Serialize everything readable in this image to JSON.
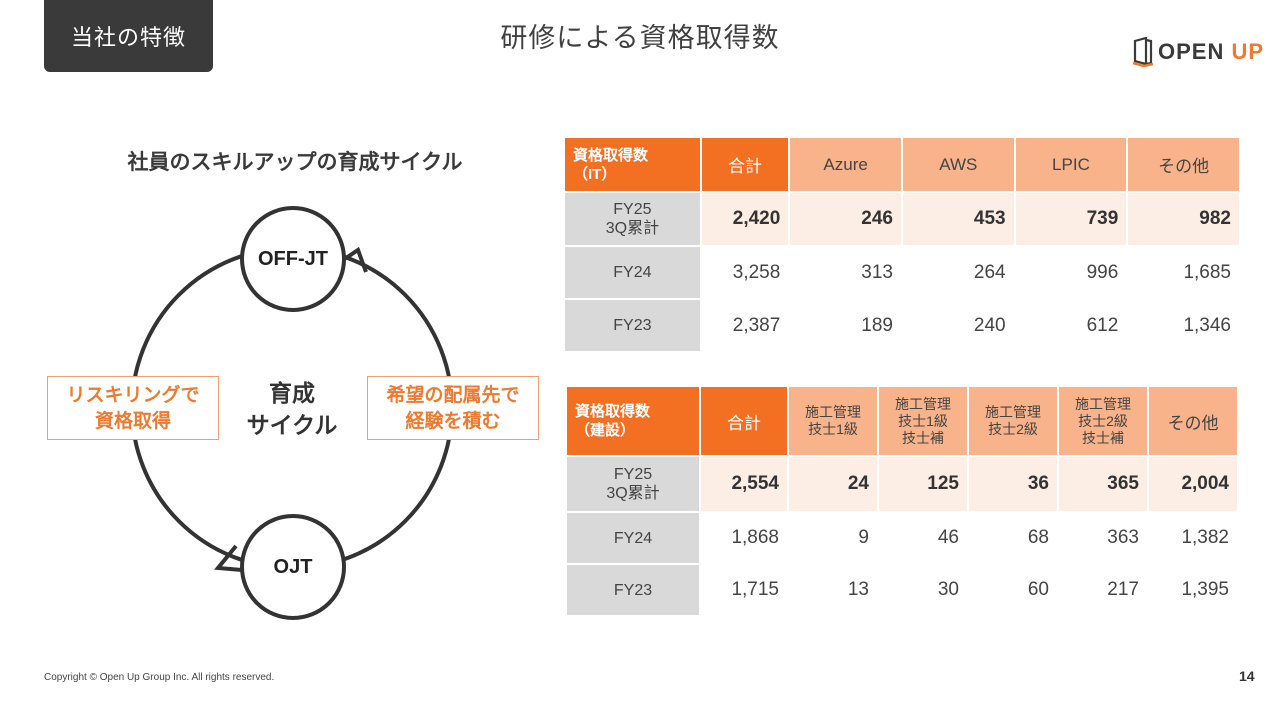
{
  "header": {
    "tag": "当社の特徴",
    "title": "研修による資格取得数"
  },
  "logo": {
    "text_main": "OPEN ",
    "text_accent": "UP",
    "accent_color": "#f07a2b",
    "icon": "door-logo-icon"
  },
  "cycle": {
    "title": "社員のスキルアップの育成サイクル",
    "top_node": "OFF-JT",
    "bottom_node": "OJT",
    "center_line1": "育成",
    "center_line2": "サイクル",
    "left_box": [
      "リスキリングで",
      "資格取得"
    ],
    "right_box": [
      "希望の配属先で",
      "経験を積む"
    ]
  },
  "table_it": {
    "label": [
      "資格取得数",
      "（IT）"
    ],
    "columns": [
      "合計",
      "Azure",
      "AWS",
      "LPIC",
      "その他"
    ],
    "rows": [
      {
        "label": [
          "FY25",
          "3Q累計"
        ],
        "values": [
          "2,420",
          "246",
          "453",
          "739",
          "982"
        ]
      },
      {
        "label": [
          "FY24"
        ],
        "values": [
          "3,258",
          "313",
          "264",
          "996",
          "1,685"
        ]
      },
      {
        "label": [
          "FY23"
        ],
        "values": [
          "2,387",
          "189",
          "240",
          "612",
          "1,346"
        ]
      }
    ]
  },
  "table_const": {
    "label": [
      "資格取得数",
      "（建設）"
    ],
    "columns": [
      [
        "合計"
      ],
      [
        "施工管理",
        "技士1級"
      ],
      [
        "施工管理",
        "技士1級",
        "技士補"
      ],
      [
        "施工管理",
        "技士2級"
      ],
      [
        "施工管理",
        "技士2級",
        "技士補"
      ],
      [
        "その他"
      ]
    ],
    "rows": [
      {
        "label": [
          "FY25",
          "3Q累計"
        ],
        "values": [
          "2,554",
          "24",
          "125",
          "36",
          "365",
          "2,004"
        ]
      },
      {
        "label": [
          "FY24"
        ],
        "values": [
          "1,868",
          "9",
          "46",
          "68",
          "363",
          "1,382"
        ]
      },
      {
        "label": [
          "FY23"
        ],
        "values": [
          "1,715",
          "13",
          "30",
          "60",
          "217",
          "1,395"
        ]
      }
    ]
  },
  "colors": {
    "orange": "#f37023",
    "light_orange": "#f8b38b",
    "highlight": "#fdeee5",
    "gray": "#d9d9d9",
    "dark": "#3a3a3a"
  },
  "footer": {
    "copyright": "Copyright © Open Up Group Inc. All rights reserved.",
    "page": "14"
  }
}
